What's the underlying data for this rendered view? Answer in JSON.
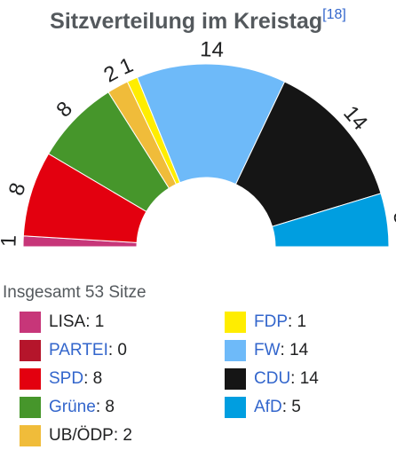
{
  "title": "Sitzverteilung im Kreistag",
  "title_ref": "[18]",
  "total_label": "Insgesamt 53 Sitze",
  "chart_data": {
    "type": "parliament-semicircle",
    "title": "Sitzverteilung im Kreistag",
    "total": 53,
    "parties": [
      {
        "name": "LISA",
        "seats": 1,
        "color": "#c73679",
        "link": false
      },
      {
        "name": "PARTEI",
        "seats": 0,
        "color": "#b5152b",
        "link": true
      },
      {
        "name": "SPD",
        "seats": 8,
        "color": "#e3000f",
        "link": true
      },
      {
        "name": "Grüne",
        "seats": 8,
        "color": "#46962b",
        "link": true
      },
      {
        "name": "UB/ÖDP",
        "seats": 2,
        "color": "#f0bc3a",
        "link": false
      },
      {
        "name": "FDP",
        "seats": 1,
        "color": "#ffed00",
        "link": true
      },
      {
        "name": "FW",
        "seats": 14,
        "color": "#6ebaf9",
        "link": true
      },
      {
        "name": "CDU",
        "seats": 14,
        "color": "#151515",
        "link": true
      },
      {
        "name": "AfD",
        "seats": 5,
        "color": "#009ee0",
        "link": true
      }
    ]
  }
}
